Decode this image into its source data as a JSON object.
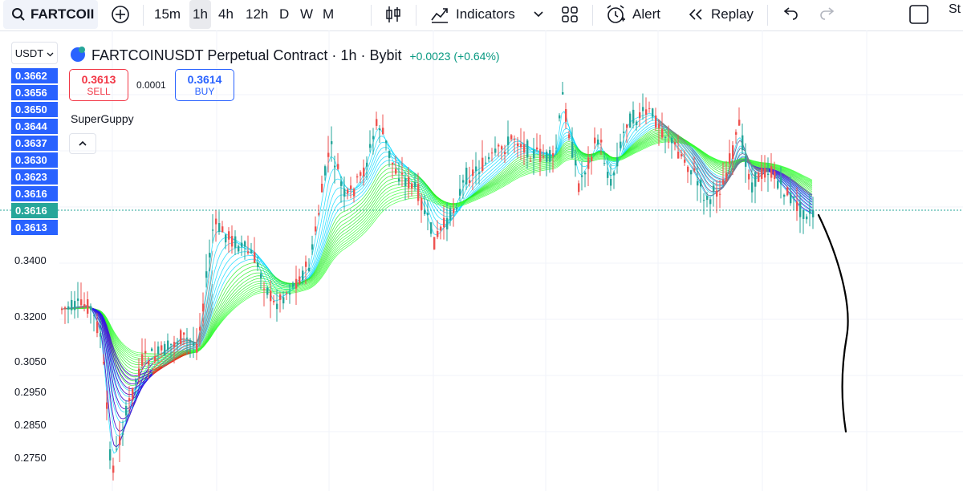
{
  "toolbar": {
    "symbol": "FARTCOII",
    "intervals": [
      "15m",
      "1h",
      "4h",
      "12h",
      "D",
      "W",
      "M"
    ],
    "active_interval": "1h",
    "indicators_label": "Indicators",
    "alert_label": "Alert",
    "replay_label": "Replay",
    "right_cut_text": "St"
  },
  "header": {
    "currency": "USDT",
    "title": "FARTCOINUSDT Perpetual Contract · 1h · Bybit",
    "change": "+0.0023 (+0.64%)",
    "change_color": "#089981"
  },
  "order": {
    "sell_price": "0.3613",
    "sell_label": "SELL",
    "spread": "0.0001",
    "buy_price": "0.3614",
    "buy_label": "BUY"
  },
  "indicator": {
    "name": "SuperGuppy"
  },
  "price_labels": [
    {
      "text": "0.3662",
      "color": "#2962ff"
    },
    {
      "text": "0.3656",
      "color": "#2962ff"
    },
    {
      "text": "0.3650",
      "color": "#2962ff"
    },
    {
      "text": "0.3644",
      "color": "#2962ff"
    },
    {
      "text": "0.3637",
      "color": "#2962ff"
    },
    {
      "text": "0.3630",
      "color": "#2962ff"
    },
    {
      "text": "0.3623",
      "color": "#2962ff"
    },
    {
      "text": "0.3616",
      "color": "#2962ff"
    },
    {
      "text": "0.3616",
      "color": "#26a69a"
    },
    {
      "text": "0.3613",
      "color": "#2962ff"
    }
  ],
  "axis_labels": [
    "0.3400",
    "0.3200",
    "0.3050",
    "0.2950",
    "0.2850",
    "0.2750"
  ],
  "chart_data": {
    "type": "candlestick",
    "y_ticks": [
      0.34,
      0.32,
      0.305,
      0.295,
      0.285,
      0.275
    ],
    "last_price": 0.3616,
    "colors": {
      "up": "#26a69a",
      "down": "#ef5350"
    },
    "guppy_colors": [
      "#ff0000",
      "#0000ff",
      "#00ffff",
      "#00ff00",
      "#808080"
    ]
  }
}
